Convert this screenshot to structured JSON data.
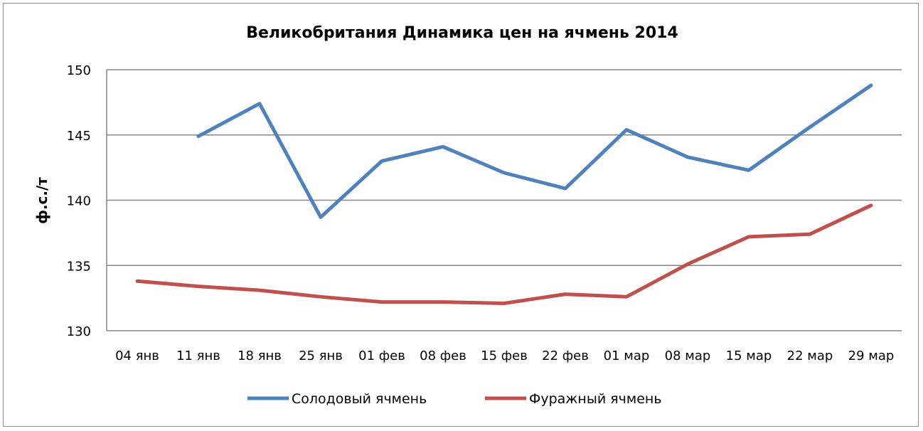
{
  "chart_data": {
    "type": "line",
    "title": "Великобритания Динамика цен на ячмень  2014",
    "ylabel": "ф.с./т",
    "xlabel": "",
    "ylim": [
      130,
      150
    ],
    "yticks": [
      130,
      135,
      140,
      145,
      150
    ],
    "grid": "horizontal",
    "legend": "bottom",
    "categories": [
      "04 янв",
      "11 янв",
      "18 янв",
      "25 янв",
      "01 фев",
      "08 фев",
      "15 фев",
      "22 фев",
      "01 мар",
      "08 мар",
      "15 мар",
      "22 мар",
      "29 мар"
    ],
    "series": [
      {
        "name": "Солодовый ячмень",
        "color": "#4f81bd",
        "values": [
          null,
          144.9,
          147.4,
          138.7,
          143.0,
          144.1,
          142.1,
          140.9,
          145.4,
          143.3,
          142.3,
          145.6,
          148.8
        ]
      },
      {
        "name": "Фуражный ячмень",
        "color": "#c0504d",
        "values": [
          133.8,
          133.4,
          133.1,
          132.6,
          132.2,
          132.2,
          132.1,
          132.8,
          132.6,
          135.1,
          137.2,
          137.4,
          139.6
        ]
      }
    ]
  }
}
